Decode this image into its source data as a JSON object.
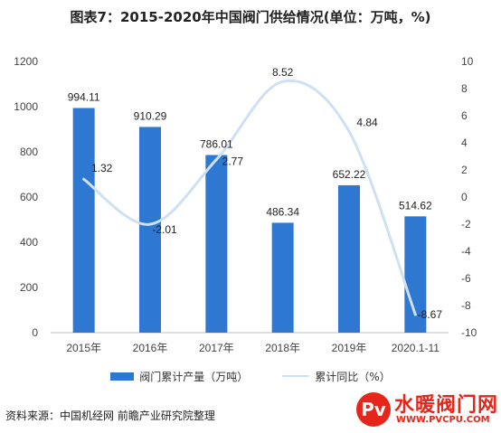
{
  "title": "图表7：2015-2020年中国阀门供给情况(单位：万吨，%)",
  "source": "资料来源：中国机经网 前瞻产业研究院整理",
  "logo": {
    "badge": "Pv",
    "name": "水暖阀门网",
    "url": "WWW.PVCPU.COM"
  },
  "colors": {
    "bar": "#2e78d2",
    "line": "#cfe0f4"
  },
  "chart_data": {
    "type": "bar",
    "categories": [
      "2015年",
      "2016年",
      "2017年",
      "2018年",
      "2019年",
      "2020.1-11"
    ],
    "series": [
      {
        "name": "阀门累计产量（万吨）",
        "type": "bar",
        "axis": "left",
        "values": [
          994.11,
          910.29,
          786.01,
          486.34,
          652.22,
          514.62
        ],
        "labels": [
          "994.11",
          "910.29",
          "786.01",
          "486.34",
          "652.22",
          "514.62"
        ]
      },
      {
        "name": "累计同比（%）",
        "type": "line",
        "axis": "right",
        "smooth": true,
        "values": [
          1.32,
          -2.01,
          2.77,
          8.52,
          4.84,
          -8.67
        ],
        "labels": [
          "1.32",
          "-2.01",
          "2.77",
          "8.52",
          "4.84",
          "-8.67"
        ]
      }
    ],
    "y_left": {
      "min": 0,
      "max": 1200,
      "ticks": [
        0,
        200,
        400,
        600,
        800,
        1000,
        1200
      ]
    },
    "y_right": {
      "min": -10,
      "max": 10,
      "ticks": [
        -10,
        -8,
        -6,
        -4,
        -2,
        0,
        2,
        4,
        6,
        8,
        10
      ]
    },
    "legend_position": "bottom",
    "grid": false
  }
}
